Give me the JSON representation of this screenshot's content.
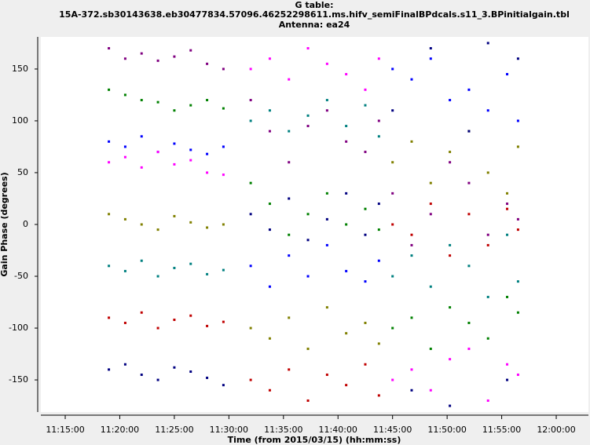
{
  "chart_data": {
    "type": "scatter",
    "title": [
      "G table:",
      "15A-372.sb30143638.eb30477834.57096.46252298611.ms.hifv_semiFinalBPdcals.s11_3.BPinitialgain.tbl",
      "Antenna: ea24"
    ],
    "x_label": "Time (from 2015/03/15) (hh:mm:ss)",
    "y_label": "Gain Phase (degrees)",
    "xlim": [
      "11:12:46",
      "12:02:57"
    ],
    "ylim": [
      -181,
      181
    ],
    "xticks": [
      "11:15:00",
      "11:20:00",
      "11:25:00",
      "11:30:00",
      "11:35:00",
      "11:40:00",
      "11:45:00",
      "11:50:00",
      "11:55:00",
      "12:00:00"
    ],
    "yticks": [
      -150,
      -100,
      -50,
      0,
      50,
      100,
      150
    ],
    "x": [
      "11:19:00",
      "11:20:30",
      "11:22:00",
      "11:23:30",
      "11:25:00",
      "11:26:30",
      "11:28:00",
      "11:29:30",
      "11:32:00",
      "11:33:45",
      "11:35:30",
      "11:37:15",
      "11:39:00",
      "11:40:45",
      "11:42:30",
      "11:43:45",
      "11:45:00",
      "11:46:45",
      "11:48:30",
      "11:50:15",
      "11:52:00",
      "11:53:45",
      "11:55:30",
      "11:56:30"
    ],
    "series": [
      {
        "color": "#800080",
        "values": [
          170,
          160,
          165,
          158,
          162,
          168,
          155,
          150,
          120,
          90,
          60,
          95,
          110,
          80,
          70,
          100,
          30,
          -20,
          10,
          60,
          40,
          -10,
          20,
          5
        ]
      },
      {
        "color": "#008000",
        "values": [
          130,
          125,
          120,
          118,
          110,
          115,
          120,
          112,
          40,
          20,
          -10,
          10,
          30,
          0,
          15,
          -5,
          -100,
          -90,
          -120,
          -80,
          -95,
          -110,
          -70,
          -85
        ]
      },
      {
        "color": "#0000ff",
        "values": [
          80,
          75,
          85,
          70,
          78,
          72,
          68,
          75,
          -40,
          -60,
          -30,
          -50,
          -20,
          -45,
          -55,
          -35,
          150,
          140,
          160,
          120,
          130,
          110,
          145,
          100
        ]
      },
      {
        "color": "#ff00ff",
        "values": [
          60,
          65,
          55,
          70,
          58,
          62,
          50,
          48,
          150,
          160,
          140,
          170,
          155,
          145,
          130,
          160,
          -150,
          -140,
          -160,
          -130,
          -120,
          -170,
          -135,
          -145
        ]
      },
      {
        "color": "#808000",
        "values": [
          10,
          5,
          0,
          -5,
          8,
          2,
          -3,
          0,
          -100,
          -110,
          -90,
          -120,
          -80,
          -105,
          -95,
          -115,
          60,
          80,
          40,
          70,
          90,
          50,
          30,
          75
        ]
      },
      {
        "color": "#008080",
        "values": [
          -40,
          -45,
          -35,
          -50,
          -42,
          -38,
          -48,
          -44,
          100,
          110,
          90,
          105,
          120,
          95,
          115,
          85,
          -50,
          -30,
          -60,
          -20,
          -40,
          -70,
          -10,
          -55
        ]
      },
      {
        "color": "#c00000",
        "values": [
          -90,
          -95,
          -85,
          -100,
          -92,
          -88,
          -98,
          -94,
          -150,
          -160,
          -140,
          -170,
          -145,
          -155,
          -135,
          -165,
          0,
          -10,
          20,
          -30,
          10,
          -20,
          15,
          -5
        ]
      },
      {
        "color": "#000080",
        "values": [
          -140,
          -135,
          -145,
          -150,
          -138,
          -142,
          -148,
          -155,
          10,
          -5,
          25,
          -15,
          5,
          30,
          -10,
          20,
          110,
          -160,
          170,
          -175,
          90,
          175,
          -150,
          160
        ]
      }
    ]
  }
}
